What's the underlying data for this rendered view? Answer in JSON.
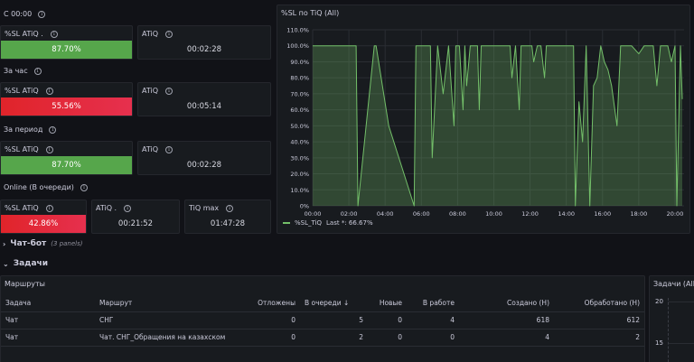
{
  "sections": {
    "since_midnight": "С 00:00",
    "per_hour": "За час",
    "per_period": "За период",
    "online": "Online (В очереди)"
  },
  "stats": {
    "s1_sl": {
      "title": "%SL ATiQ .",
      "value": "87.70%",
      "color": "#56a64b"
    },
    "s1_atiq": {
      "title": "ATiQ",
      "value": "00:02:28"
    },
    "s2_sl": {
      "title": "%SL ATiQ",
      "value": "55.56%",
      "color": "#e02f44"
    },
    "s2_atiq": {
      "title": "ATiQ",
      "value": "00:05:14"
    },
    "s3_sl": {
      "title": "%SL ATiQ",
      "value": "87.70%",
      "color": "#56a64b"
    },
    "s3_atiq": {
      "title": "ATiQ",
      "value": "00:02:28"
    },
    "s4_sl": {
      "title": "%SL ATiQ",
      "value": "42.86%",
      "color": "#e02f44"
    },
    "s4_atiq": {
      "title": "ATiQ .",
      "value": "00:21:52"
    },
    "s4_tiqmax": {
      "title": "TiQ max",
      "value": "01:47:28"
    }
  },
  "chart_panel": {
    "title": "%SL по TiQ (All)"
  },
  "chart_data": {
    "type": "area",
    "title": "%SL по TiQ (All)",
    "xlabel": "",
    "ylabel": "",
    "x_ticks": [
      "00:00",
      "02:00",
      "04:00",
      "06:00",
      "08:00",
      "10:00",
      "12:00",
      "14:00",
      "16:00",
      "18:00",
      "20:00"
    ],
    "y_ticks": [
      "0%",
      "10.0%",
      "20.0%",
      "30.0%",
      "40.0%",
      "50.0%",
      "60.0%",
      "70.0%",
      "80.0%",
      "90.0%",
      "100.0%",
      "110.0%"
    ],
    "xlim": [
      0,
      20.5
    ],
    "ylim": [
      0,
      110
    ],
    "series": [
      {
        "name": "%SL_TiQ",
        "color": "#73bf69",
        "x": [
          0,
          2.4,
          2.5,
          3.4,
          3.5,
          4.2,
          5.6,
          5.7,
          6.5,
          6.6,
          6.9,
          7.2,
          7.5,
          7.8,
          7.9,
          8.1,
          8.3,
          8.4,
          8.5,
          8.7,
          8.9,
          9.1,
          9.2,
          9.3,
          10.9,
          11.0,
          11.2,
          11.4,
          11.5,
          11.7,
          11.9,
          12.1,
          12.2,
          12.4,
          12.6,
          12.8,
          12.9,
          13.0,
          14.2,
          14.4,
          14.5,
          14.7,
          14.9,
          15.1,
          15.3,
          15.5,
          15.7,
          15.9,
          16.1,
          16.3,
          16.5,
          16.8,
          17.0,
          17.5,
          17.6,
          18.0,
          18.3,
          18.6,
          18.8,
          19.0,
          19.2,
          19.6,
          19.8,
          20.0,
          20.1,
          20.3,
          20.4
        ],
        "y": [
          100,
          100,
          0,
          100,
          100,
          50,
          0,
          100,
          100,
          30,
          100,
          70,
          100,
          50,
          100,
          100,
          60,
          100,
          75,
          100,
          100,
          100,
          60,
          100,
          100,
          80,
          100,
          60,
          100,
          100,
          100,
          100,
          90,
          100,
          100,
          80,
          100,
          100,
          100,
          100,
          0,
          65,
          40,
          100,
          0,
          75,
          80,
          100,
          90,
          85,
          75,
          50,
          100,
          100,
          100,
          95,
          100,
          100,
          100,
          75,
          100,
          100,
          90,
          100,
          0,
          100,
          66.67
        ]
      }
    ],
    "legend": {
      "label": "%SL_TiQ",
      "last": "Last *: 66.67%"
    },
    "grid": true,
    "legend_placement": "bottom-left"
  },
  "rows": {
    "chatbot": {
      "title": "Чат-бот",
      "sub": "(3 panels)"
    },
    "tasks": {
      "title": "Задачи"
    }
  },
  "routes_panel": {
    "title": "Маршруты",
    "columns": [
      "Задача",
      "Маршрут",
      "Отложены",
      "В очереди ↓",
      "Новые",
      "В работе",
      "Создано (Н)",
      "Обработано (Н)"
    ],
    "rows": [
      [
        "Чат",
        "СНГ",
        "0",
        "5",
        "0",
        "4",
        "618",
        "612"
      ],
      [
        "Чат",
        "Чат. СНГ_Обращения на казахском",
        "0",
        "2",
        "0",
        "0",
        "4",
        "2"
      ]
    ]
  },
  "tasks_panel": {
    "title": "Задачи (All)",
    "y_ticks": [
      "20",
      "15"
    ]
  }
}
